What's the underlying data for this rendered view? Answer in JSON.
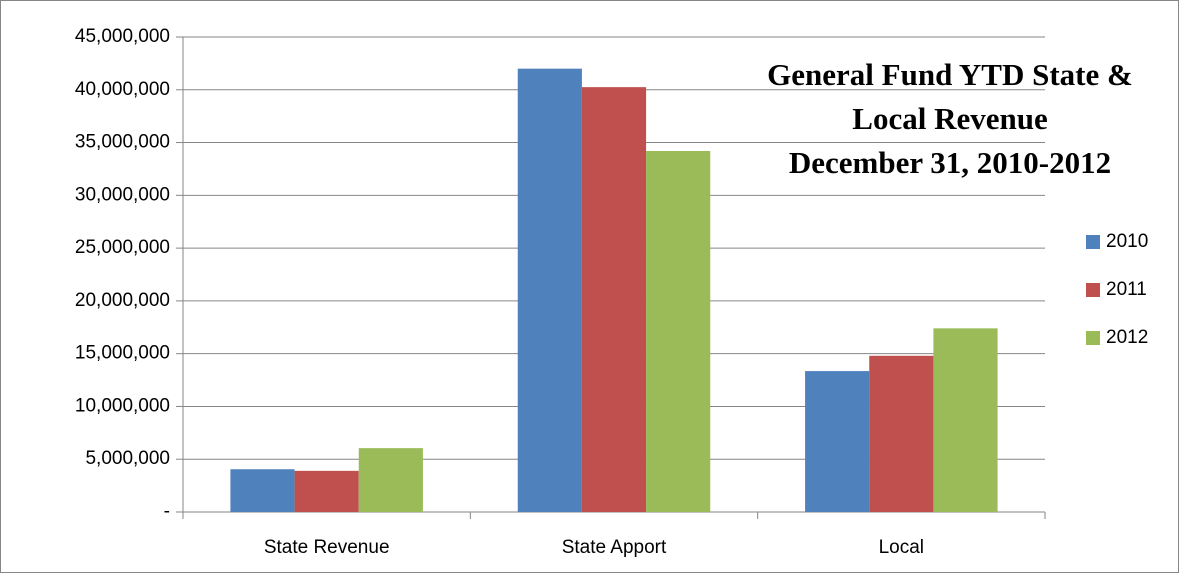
{
  "chart_data": {
    "type": "bar",
    "title": [
      "General Fund YTD State &",
      "Local Revenue",
      "December 31, 2010-2012"
    ],
    "categories": [
      "State Revenue",
      "State Apport",
      "Local"
    ],
    "series": [
      {
        "name": "2010",
        "color": "#4f81bd",
        "values": [
          4050000,
          42000000,
          13350000
        ]
      },
      {
        "name": "2011",
        "color": "#c0504d",
        "values": [
          3900000,
          40250000,
          14800000
        ]
      },
      {
        "name": "2012",
        "color": "#9bbb59",
        "values": [
          6050000,
          34200000,
          17400000
        ]
      }
    ],
    "ylim": [
      0,
      45000000
    ],
    "yticks": [
      {
        "value": 0,
        "label": "-"
      },
      {
        "value": 5000000,
        "label": "5,000,000"
      },
      {
        "value": 10000000,
        "label": "10,000,000"
      },
      {
        "value": 15000000,
        "label": "15,000,000"
      },
      {
        "value": 20000000,
        "label": "20,000,000"
      },
      {
        "value": 25000000,
        "label": "25,000,000"
      },
      {
        "value": 30000000,
        "label": "30,000,000"
      },
      {
        "value": 35000000,
        "label": "35,000,000"
      },
      {
        "value": 40000000,
        "label": "40,000,000"
      },
      {
        "value": 45000000,
        "label": "45,000,000"
      }
    ],
    "grid": true,
    "legend": "right"
  }
}
